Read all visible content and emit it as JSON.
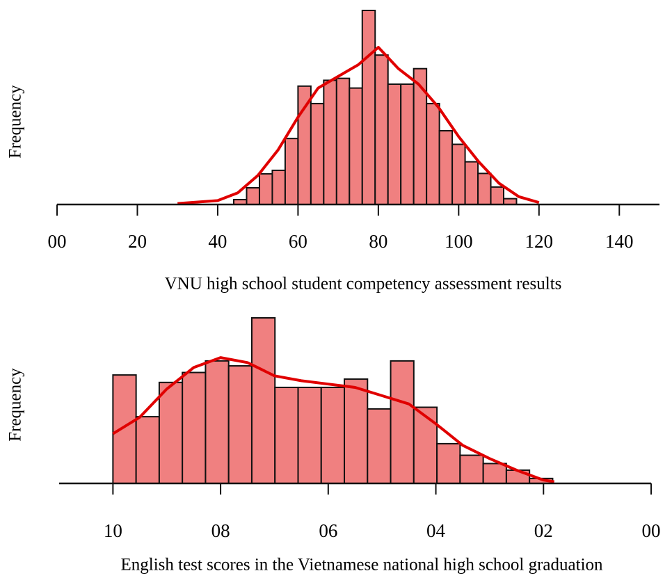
{
  "chart_data": [
    {
      "type": "histogram",
      "xlabel": "VNU high school student competency assessment results",
      "ylabel": "Frequency",
      "bins": [
        44,
        47.2,
        50.4,
        53.6,
        56.8,
        60,
        63.2,
        66.4,
        69.6,
        72.8,
        76,
        79.2,
        82.4,
        85.6,
        88.8,
        92,
        95.2,
        98.4,
        101.6,
        104.8,
        108,
        111.2,
        114.4
      ],
      "values": [
        2.5,
        8.6,
        15.8,
        17.6,
        34,
        61,
        52,
        64,
        65,
        60,
        100,
        77,
        62,
        62,
        70,
        52,
        38,
        31,
        22,
        16,
        9,
        3
      ],
      "color": "#f08080",
      "density": {
        "color": "#e00000",
        "x": [
          30,
          40,
          45,
          50,
          55,
          60,
          65,
          70,
          75,
          80,
          85,
          90,
          95,
          100,
          105,
          110,
          115,
          120
        ],
        "values": [
          0.5,
          2,
          6,
          15,
          28,
          45,
          60,
          66,
          72,
          81,
          70,
          62,
          50,
          35,
          22,
          11,
          4,
          1
        ]
      },
      "xlim": [
        0,
        150
      ],
      "xticks": [
        {
          "value": 0,
          "label": "00"
        },
        20,
        40,
        60,
        80,
        100,
        120,
        140
      ],
      "ylim": [
        0,
        100
      ]
    },
    {
      "type": "histogram",
      "xlabel": "English test scores in the Vietnamese national high school graduation",
      "ylabel": "Frequency",
      "bins": [
        10,
        9.57,
        9.14,
        8.71,
        8.28,
        7.85,
        7.42,
        6.99,
        6.56,
        6.13,
        5.7,
        5.27,
        4.84,
        4.41,
        3.98,
        3.55,
        3.12,
        2.69,
        2.26,
        1.83
      ],
      "values": [
        65.5,
        40.3,
        61,
        67,
        74,
        71,
        100,
        58,
        58,
        58,
        63,
        45,
        74,
        46,
        24,
        17,
        12,
        8,
        3
      ],
      "color": "#f08080",
      "density": {
        "color": "#e00000",
        "x": [
          10,
          9.5,
          9,
          8.5,
          8,
          7.5,
          7,
          6.5,
          6,
          5.5,
          5,
          4.5,
          4,
          3.5,
          3,
          2.5,
          2,
          1.8
        ],
        "values": [
          30,
          40,
          57,
          70,
          76,
          73,
          65,
          62,
          60,
          58,
          53,
          48,
          36,
          23,
          15,
          8,
          2,
          1
        ]
      },
      "xlim": [
        11,
        0
      ],
      "xticks": [
        10,
        {
          "value": 8,
          "label": "08"
        },
        {
          "value": 6,
          "label": "06"
        },
        {
          "value": 4,
          "label": "04"
        },
        {
          "value": 2,
          "label": "02"
        },
        {
          "value": 0,
          "label": "00"
        }
      ],
      "ylim": [
        0,
        100
      ]
    }
  ]
}
